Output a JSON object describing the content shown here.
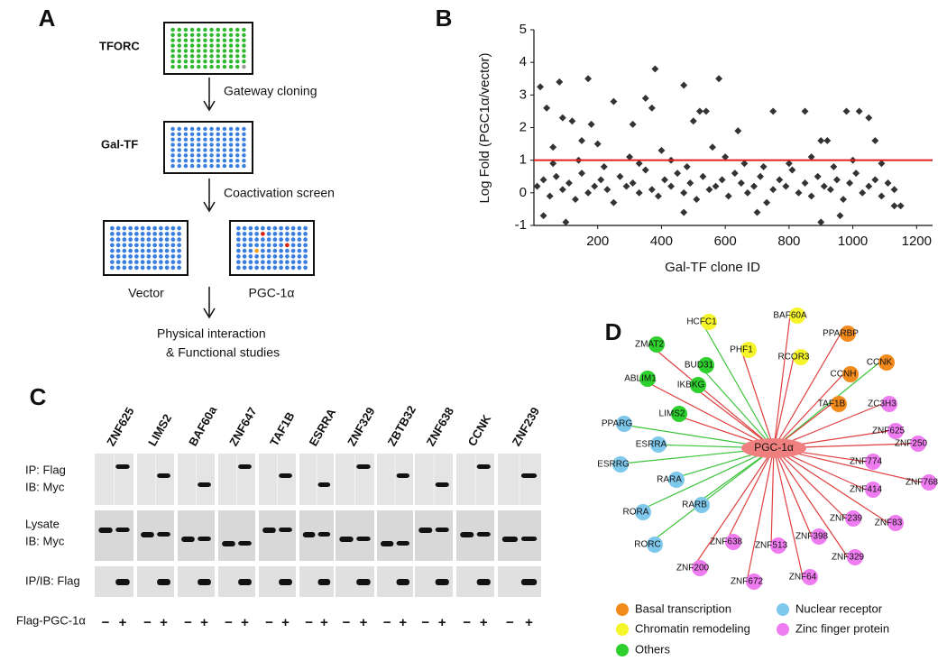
{
  "panel_a": {
    "label": "A",
    "tforc": "TFORC",
    "galtf": "Gal-TF",
    "steps": [
      "Gateway cloning",
      "Coactivation screen"
    ],
    "plates": [
      "Vector",
      "PGC-1α"
    ],
    "outcome": [
      "Physical interaction",
      "& Functional studies"
    ]
  },
  "chart_data": {
    "type": "scatter",
    "label": "B",
    "xlabel": "Gal-TF clone ID",
    "ylabel": "Log Fold (PGC1α/vector)",
    "color": "#333333",
    "threshold": 1,
    "threshold_color": "#e02020",
    "xlim": [
      0,
      1250
    ],
    "ylim": [
      -1,
      5
    ],
    "xticks": [
      200,
      400,
      600,
      800,
      1000,
      1200
    ],
    "yticks": [
      -1,
      0,
      1,
      2,
      3,
      4,
      5
    ],
    "x": [
      10,
      30,
      50,
      70,
      90,
      110,
      130,
      150,
      170,
      190,
      210,
      230,
      250,
      270,
      290,
      310,
      330,
      350,
      370,
      390,
      410,
      430,
      450,
      470,
      490,
      510,
      530,
      550,
      570,
      590,
      610,
      630,
      650,
      670,
      690,
      710,
      730,
      750,
      770,
      790,
      810,
      830,
      850,
      870,
      890,
      910,
      930,
      950,
      970,
      990,
      1010,
      1030,
      1050,
      1070,
      1090,
      1110,
      1130,
      1150,
      20,
      40,
      60,
      80,
      90,
      120,
      150,
      170,
      180,
      200,
      250,
      310,
      350,
      370,
      380,
      400,
      470,
      500,
      520,
      540,
      560,
      580,
      640,
      750,
      850,
      900,
      920,
      980,
      1020,
      1050,
      1070,
      100,
      30,
      900,
      960,
      1130,
      470,
      700,
      60,
      140,
      220,
      300,
      330,
      430,
      480,
      600,
      660,
      720,
      800,
      870,
      940,
      1000,
      1090
    ],
    "values": [
      0.2,
      0.4,
      -0.1,
      0.5,
      0.1,
      0.3,
      -0.2,
      0.6,
      0.0,
      0.2,
      0.4,
      0.1,
      -0.3,
      0.5,
      0.2,
      0.3,
      0.0,
      0.7,
      0.1,
      -0.1,
      0.4,
      0.2,
      0.6,
      0.0,
      0.3,
      -0.2,
      0.5,
      0.1,
      0.2,
      0.4,
      -0.1,
      0.6,
      0.3,
      0.0,
      0.2,
      0.5,
      -0.3,
      0.1,
      0.4,
      0.2,
      0.7,
      0.0,
      0.3,
      -0.1,
      0.5,
      0.2,
      0.1,
      0.4,
      -0.2,
      0.3,
      0.6,
      0.0,
      0.2,
      0.4,
      -0.1,
      0.3,
      0.1,
      -0.4,
      3.25,
      2.6,
      1.4,
      3.4,
      2.3,
      2.2,
      1.6,
      3.5,
      2.1,
      1.5,
      2.8,
      2.1,
      2.9,
      2.6,
      3.8,
      1.3,
      3.3,
      2.2,
      2.5,
      2.5,
      1.4,
      3.5,
      1.9,
      2.5,
      2.5,
      1.6,
      1.6,
      2.5,
      2.5,
      2.3,
      1.6,
      -0.9,
      -0.7,
      -0.9,
      -0.7,
      -0.4,
      -0.6,
      -0.6,
      0.9,
      1.0,
      0.8,
      1.1,
      0.9,
      1.0,
      0.8,
      1.1,
      0.9,
      0.8,
      0.9,
      1.1,
      0.8,
      1.0,
      0.9
    ]
  },
  "panel_c": {
    "label": "C",
    "proteins": [
      "ZNF625",
      "LIMS2",
      "BAF60a",
      "ZNF647",
      "TAF1B",
      "ESRRA",
      "ZNF329",
      "ZBTB32",
      "ZNF638",
      "CCNK",
      "ZNF239"
    ],
    "rows": [
      "IP: Flag",
      "IB: Myc",
      "Lysate",
      "IB: Myc",
      "IP/IB: Flag"
    ],
    "treatment": "Flag-PGC-1α",
    "signs": [
      "−",
      "+"
    ]
  },
  "panel_d": {
    "label": "D",
    "center": "PGC-1α",
    "categories": [
      {
        "name": "Basal transcription",
        "color": "#f28a1c"
      },
      {
        "name": "Nuclear receptor",
        "color": "#7ec8ec"
      },
      {
        "name": "Chromatin remodeling",
        "color": "#f5f52a"
      },
      {
        "name": "Zinc finger protein",
        "color": "#ee7cf0"
      },
      {
        "name": "Others",
        "color": "#2ed02e"
      }
    ],
    "nodes": [
      {
        "label": "HCFC1",
        "category": 2,
        "edge_color": "#3cc43c"
      },
      {
        "label": "BAF60A",
        "category": 2,
        "edge_color": "#e04040"
      },
      {
        "label": "PPARBP",
        "category": 0,
        "edge_color": "#e04040"
      },
      {
        "label": "ZMAT2",
        "category": 4,
        "edge_color": "#e04040"
      },
      {
        "label": "PHF1",
        "category": 2,
        "edge_color": "#e04040"
      },
      {
        "label": "RCOR3",
        "category": 2,
        "edge_color": "#e04040"
      },
      {
        "label": "BUD31",
        "category": 4,
        "edge_color": "#3cc43c"
      },
      {
        "label": "CCNK",
        "category": 0,
        "edge_color": "#3cc43c"
      },
      {
        "label": "CCNH",
        "category": 0,
        "edge_color": "#e04040"
      },
      {
        "label": "ABLIM1",
        "category": 4,
        "edge_color": "#e04040"
      },
      {
        "label": "IKBKG",
        "category": 4,
        "edge_color": "#e04040"
      },
      {
        "label": "TAF1B",
        "category": 0,
        "edge_color": "#e04040"
      },
      {
        "label": "ZC3H3",
        "category": 3,
        "edge_color": "#e04040"
      },
      {
        "label": "LIMS2",
        "category": 4,
        "edge_color": "#e04040"
      },
      {
        "label": "PPARG",
        "category": 1,
        "edge_color": "#3cc43c"
      },
      {
        "label": "ZNF625",
        "category": 3,
        "edge_color": "#e04040"
      },
      {
        "label": "ESRRA",
        "category": 1,
        "edge_color": "#3cc43c"
      },
      {
        "label": "ZNF250",
        "category": 3,
        "edge_color": "#e04040"
      },
      {
        "label": "ESRRG",
        "category": 1,
        "edge_color": "#3cc43c"
      },
      {
        "label": "ZNF774",
        "category": 3,
        "edge_color": "#e04040"
      },
      {
        "label": "RARA",
        "category": 1,
        "edge_color": "#3cc43c"
      },
      {
        "label": "ZNF768",
        "category": 3,
        "edge_color": "#e04040"
      },
      {
        "label": "ZNF414",
        "category": 3,
        "edge_color": "#e04040"
      },
      {
        "label": "RORA",
        "category": 1,
        "edge_color": "#3cc43c"
      },
      {
        "label": "RARB",
        "category": 1,
        "edge_color": "#3cc43c"
      },
      {
        "label": "ZNF239",
        "category": 3,
        "edge_color": "#e04040"
      },
      {
        "label": "ZNF83",
        "category": 3,
        "edge_color": "#e04040"
      },
      {
        "label": "ZNF398",
        "category": 3,
        "edge_color": "#e04040"
      },
      {
        "label": "RORC",
        "category": 1,
        "edge_color": "#3cc43c"
      },
      {
        "label": "ZNF638",
        "category": 3,
        "edge_color": "#e04040"
      },
      {
        "label": "ZNF513",
        "category": 3,
        "edge_color": "#e04040"
      },
      {
        "label": "ZNF329",
        "category": 3,
        "edge_color": "#e04040"
      },
      {
        "label": "ZNF200",
        "category": 3,
        "edge_color": "#e04040"
      },
      {
        "label": "ZNF64",
        "category": 3,
        "edge_color": "#e04040"
      },
      {
        "label": "ZNF672",
        "category": 3,
        "edge_color": "#e04040"
      }
    ]
  }
}
